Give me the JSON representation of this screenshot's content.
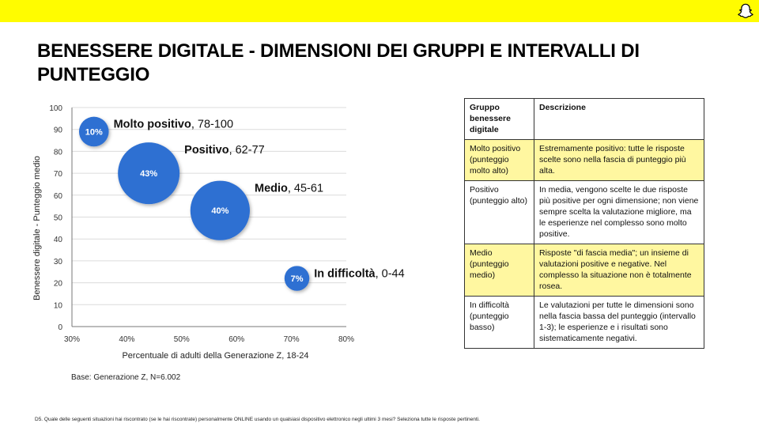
{
  "header": {
    "title": "BENESSERE DIGITALE - DIMENSIONI DEI GRUPPI E INTERVALLI DI PUNTEGGIO",
    "brand_color": "#FFFC00",
    "logo_icon": "snapchat-ghost-icon"
  },
  "chart_data": {
    "type": "scatter",
    "xlabel": "Percentuale di adulti della Generazione Z, 18-24",
    "ylabel": "Benessere digitale - Punteggio medio",
    "xlim": [
      30,
      80
    ],
    "ylim": [
      0,
      100
    ],
    "x_ticks": [
      "30%",
      "40%",
      "50%",
      "60%",
      "70%",
      "80%"
    ],
    "y_ticks": [
      "0",
      "10",
      "20",
      "30",
      "40",
      "50",
      "60",
      "70",
      "80",
      "90",
      "100"
    ],
    "bubble_color": "#2E6FD2",
    "points": [
      {
        "x": 34,
        "y": 89,
        "size": 10,
        "bubble_label": "10%",
        "name": "Molto positivo",
        "range": ", 78-100"
      },
      {
        "x": 44,
        "y": 70,
        "size": 43,
        "bubble_label": "43%",
        "name": "Positivo",
        "range": ", 62-77"
      },
      {
        "x": 57,
        "y": 53,
        "size": 40,
        "bubble_label": "40%",
        "name": "Medio",
        "range": ", 45-61"
      },
      {
        "x": 71,
        "y": 22,
        "size": 7,
        "bubble_label": "7%",
        "name": "In difficoltà",
        "range": ", 0-44"
      }
    ]
  },
  "base_note": "Base: Generazione Z, N=6.002",
  "table": {
    "headers": [
      "Gruppo benessere digitale",
      "Descrizione"
    ],
    "highlight_color": "#FFF7A0",
    "rows": [
      {
        "group": "Molto positivo (punteggio molto alto)",
        "description": "Estremamente positivo: tutte le risposte scelte sono nella fascia di punteggio più alta.",
        "highlight": true
      },
      {
        "group": "Positivo (punteggio alto)",
        "description": "In media, vengono scelte le due risposte più positive per ogni dimensione; non viene sempre scelta la valutazione migliore, ma le esperienze nel complesso sono molto positive.",
        "highlight": false
      },
      {
        "group": "Medio (punteggio medio)",
        "description": "Risposte \"di fascia media\"; un insieme di valutazioni positive e negative. Nel complesso la situazione non è totalmente rosea.",
        "highlight": true
      },
      {
        "group": "In difficoltà (punteggio basso)",
        "description": "Le valutazioni per tutte le dimensioni sono nella fascia bassa del punteggio (intervallo 1-3); le esperienze e i risultati sono sistematicamente negativi.",
        "highlight": false
      }
    ]
  },
  "footnote": "D5. Quale delle seguenti situazioni hai riscontrato (se le hai riscontrate) personalmente ONLINE usando un qualsiasi dispositivo elettronico negli ultimi 3 mesi? Seleziona tutte le risposte pertinenti."
}
